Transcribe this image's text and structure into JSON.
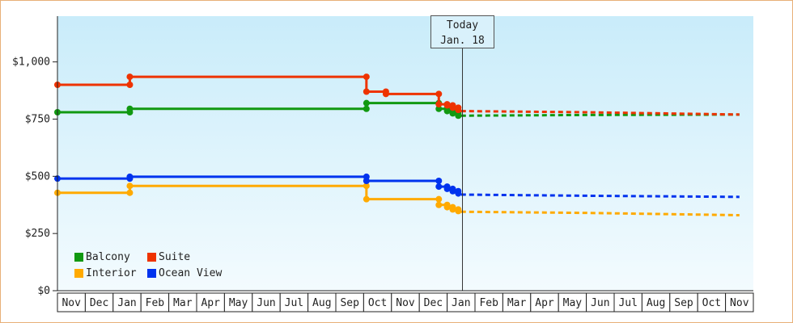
{
  "chart_data": {
    "type": "line",
    "title": "",
    "xlabel": "",
    "ylabel": "",
    "ylim": [
      0,
      1200
    ],
    "yticks": [
      {
        "value": 0,
        "label": "$0"
      },
      {
        "value": 250,
        "label": "$250"
      },
      {
        "value": 500,
        "label": "$500"
      },
      {
        "value": 750,
        "label": "$750"
      },
      {
        "value": 1000,
        "label": "$1,000"
      }
    ],
    "x_months": [
      "Nov",
      "Dec",
      "Jan",
      "Feb",
      "Mar",
      "Apr",
      "May",
      "Jun",
      "Jul",
      "Aug",
      "Sep",
      "Oct",
      "Nov",
      "Dec",
      "Jan",
      "Feb",
      "Mar",
      "Apr",
      "May",
      "Jun",
      "Jul",
      "Aug",
      "Sep",
      "Oct",
      "Nov"
    ],
    "grid": false,
    "legend_position": "bottom-left",
    "today": {
      "line1": "Today",
      "line2": "Jan. 18",
      "month_index": 14.55
    },
    "series": [
      {
        "name": "Balcony",
        "color": "#119911",
        "historical": [
          [
            0,
            780
          ],
          [
            2.6,
            780
          ],
          [
            2.6,
            795
          ],
          [
            11.1,
            795
          ],
          [
            11.1,
            820
          ],
          [
            13.7,
            820
          ],
          [
            13.7,
            795
          ],
          [
            14.0,
            795
          ],
          [
            14.0,
            785
          ],
          [
            14.2,
            785
          ],
          [
            14.2,
            775
          ],
          [
            14.4,
            775
          ],
          [
            14.4,
            765
          ]
        ],
        "forecast": [
          [
            14.5,
            765
          ],
          [
            19,
            768
          ],
          [
            24.5,
            770
          ]
        ]
      },
      {
        "name": "Suite",
        "color": "#ee3300",
        "historical": [
          [
            0,
            900
          ],
          [
            2.6,
            900
          ],
          [
            2.6,
            935
          ],
          [
            11.1,
            935
          ],
          [
            11.1,
            870
          ],
          [
            11.8,
            870
          ],
          [
            11.8,
            860
          ],
          [
            13.7,
            860
          ],
          [
            13.7,
            815
          ],
          [
            14.0,
            815
          ],
          [
            14.0,
            810
          ],
          [
            14.2,
            810
          ],
          [
            14.2,
            800
          ],
          [
            14.4,
            800
          ],
          [
            14.4,
            790
          ]
        ],
        "forecast": [
          [
            14.5,
            785
          ],
          [
            19,
            780
          ],
          [
            24.5,
            770
          ]
        ]
      },
      {
        "name": "Interior",
        "color": "#ffaa00",
        "historical": [
          [
            0,
            428
          ],
          [
            2.6,
            428
          ],
          [
            2.6,
            458
          ],
          [
            11.1,
            458
          ],
          [
            11.1,
            400
          ],
          [
            13.7,
            400
          ],
          [
            13.7,
            375
          ],
          [
            14.0,
            375
          ],
          [
            14.0,
            365
          ],
          [
            14.2,
            365
          ],
          [
            14.2,
            355
          ],
          [
            14.4,
            355
          ],
          [
            14.4,
            348
          ]
        ],
        "forecast": [
          [
            14.5,
            345
          ],
          [
            19,
            340
          ],
          [
            24.5,
            330
          ]
        ]
      },
      {
        "name": "Ocean View",
        "color": "#0033ee",
        "historical": [
          [
            0,
            490
          ],
          [
            2.6,
            490
          ],
          [
            2.6,
            498
          ],
          [
            11.1,
            498
          ],
          [
            11.1,
            480
          ],
          [
            13.7,
            480
          ],
          [
            13.7,
            455
          ],
          [
            14.0,
            455
          ],
          [
            14.0,
            445
          ],
          [
            14.2,
            445
          ],
          [
            14.2,
            435
          ],
          [
            14.4,
            435
          ],
          [
            14.4,
            425
          ]
        ],
        "forecast": [
          [
            14.5,
            420
          ],
          [
            19,
            415
          ],
          [
            24.5,
            410
          ]
        ]
      }
    ]
  }
}
